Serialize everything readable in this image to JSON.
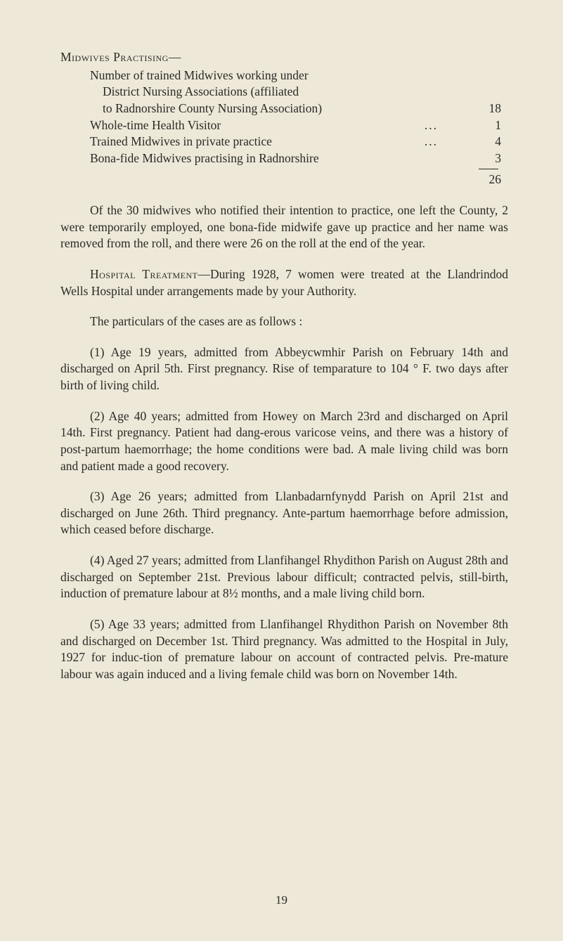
{
  "midwives": {
    "heading": "Midwives Practising—",
    "intro_lines": [
      "Number of trained Midwives working under",
      "District Nursing Associations (affiliated",
      "to Radnorshire County Nursing Association)"
    ],
    "rows": [
      {
        "label": "to Radnorshire County Nursing Association)",
        "value": "18"
      },
      {
        "label_pre": "Whole-time Health Visitor",
        "ellipsis": "...",
        "value": "1"
      },
      {
        "label_pre": "Trained Midwives in private practice",
        "ellipsis": "...",
        "value": "4"
      },
      {
        "label_pre": "Bona-fide Midwives practising in Radnorshire",
        "value": "3"
      }
    ],
    "total": "26"
  },
  "para1": "Of the 30 midwives who notified their intention to practice, one left the County, 2 were temporarily employed, one bona-fide midwife gave up practice and her name was removed from the roll, and there were 26 on the roll at the end of the year.",
  "para2_lead": "Hospital Treatment",
  "para2_rest": "—During 1928, 7 women were treated at the Llandrindod Wells Hospital under arrangements made by your Authority.",
  "para3": "The particulars of the cases are as follows :",
  "case1": "(1) Age 19 years, admitted from Abbeycwmhir Parish on February 14th and discharged on April 5th. First pregnancy. Rise of temparature to 104 ° F. two days after birth of living child.",
  "case2": "(2) Age 40 years; admitted from Howey on March 23rd and discharged on April 14th. First pregnancy. Patient had dang-erous varicose veins, and there was a history of post-partum haemorrhage; the home conditions were bad. A male living child was born and patient made a good recovery.",
  "case3": "(3) Age 26 years; admitted from Llanbadarnfynydd Parish on April 21st and discharged on June 26th. Third pregnancy. Ante-partum haemorrhage before admission, which ceased before discharge.",
  "case4": "(4) Aged 27 years; admitted from Llanfihangel Rhydithon Parish on August 28th and discharged on September 21st. Previous labour difficult; contracted pelvis, still-birth, induction of premature labour at 8½ months, and a male living child born.",
  "case5": "(5) Age 33 years; admitted from Llanfihangel Rhydithon Parish on November 8th and discharged on December 1st. Third pregnancy. Was admitted to the Hospital in July, 1927 for induc-tion of premature labour on account of contracted pelvis. Pre-mature labour was again induced and a living female child was born on November 14th.",
  "page_number": "19"
}
